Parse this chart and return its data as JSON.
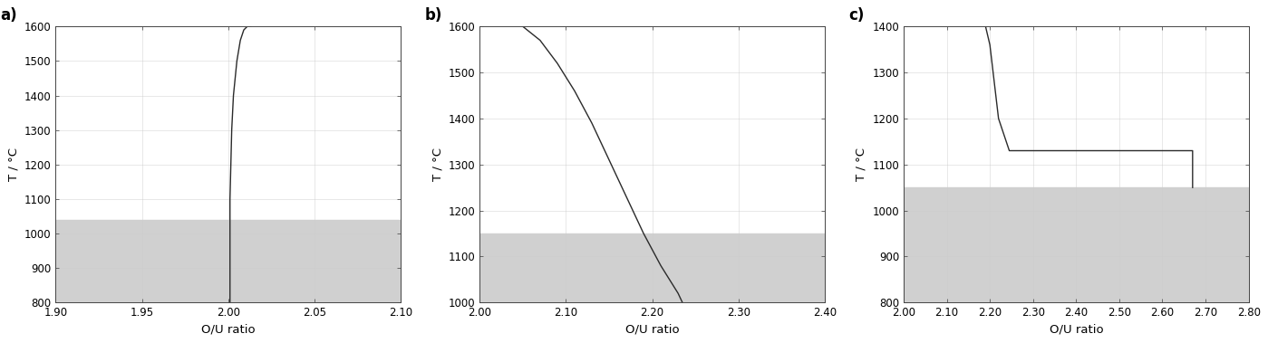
{
  "panel_a": {
    "label": "a)",
    "xlim": [
      1.9,
      2.1
    ],
    "ylim": [
      800,
      1600
    ],
    "xticks": [
      1.9,
      1.95,
      2.0,
      2.05,
      2.1
    ],
    "yticks": [
      800,
      900,
      1000,
      1100,
      1200,
      1300,
      1400,
      1500,
      1600
    ],
    "xlabel": "O/U ratio",
    "ylabel": "T / °C",
    "gray_ymax": 1040,
    "gray_ymin": 800,
    "curve_x": [
      2.001,
      2.001,
      2.001,
      2.001,
      2.0015,
      2.002,
      2.003,
      2.005,
      2.007,
      2.009,
      2.011,
      2.013
    ],
    "curve_y": [
      800,
      900,
      1000,
      1100,
      1200,
      1300,
      1400,
      1500,
      1560,
      1590,
      1600,
      1600
    ]
  },
  "panel_b": {
    "label": "b)",
    "xlim": [
      2.0,
      2.4
    ],
    "ylim": [
      1000,
      1600
    ],
    "xticks": [
      2.0,
      2.1,
      2.2,
      2.3,
      2.4
    ],
    "yticks": [
      1000,
      1100,
      1200,
      1300,
      1400,
      1500,
      1600
    ],
    "xlabel": "O/U ratio",
    "ylabel": "T / °C",
    "gray_ymax": 1150,
    "gray_ymin": 1000,
    "curve_x": [
      2.05,
      2.07,
      2.09,
      2.11,
      2.13,
      2.15,
      2.17,
      2.19,
      2.21,
      2.23,
      2.235
    ],
    "curve_y": [
      1600,
      1570,
      1520,
      1460,
      1390,
      1310,
      1230,
      1150,
      1080,
      1020,
      1000
    ]
  },
  "panel_c": {
    "label": "c)",
    "xlim": [
      2.0,
      2.8
    ],
    "ylim": [
      800,
      1400
    ],
    "xticks": [
      2.0,
      2.1,
      2.2,
      2.3,
      2.4,
      2.5,
      2.6,
      2.7,
      2.8
    ],
    "yticks": [
      800,
      900,
      1000,
      1100,
      1200,
      1300,
      1400
    ],
    "xlabel": "O/U ratio",
    "ylabel": "T / °C",
    "gray_ymax": 1050,
    "gray_ymin": 800,
    "curve_x": [
      2.19,
      2.2,
      2.22,
      2.245,
      2.67,
      2.67
    ],
    "curve_y": [
      1400,
      1360,
      1200,
      1130,
      1130,
      1050
    ]
  },
  "line_color": "#2a2a2a",
  "gray_color": "#d0d0d0",
  "line_width": 1.0,
  "tick_fontsize": 8.5,
  "label_fontsize": 9.5,
  "panel_label_fontsize": 12
}
